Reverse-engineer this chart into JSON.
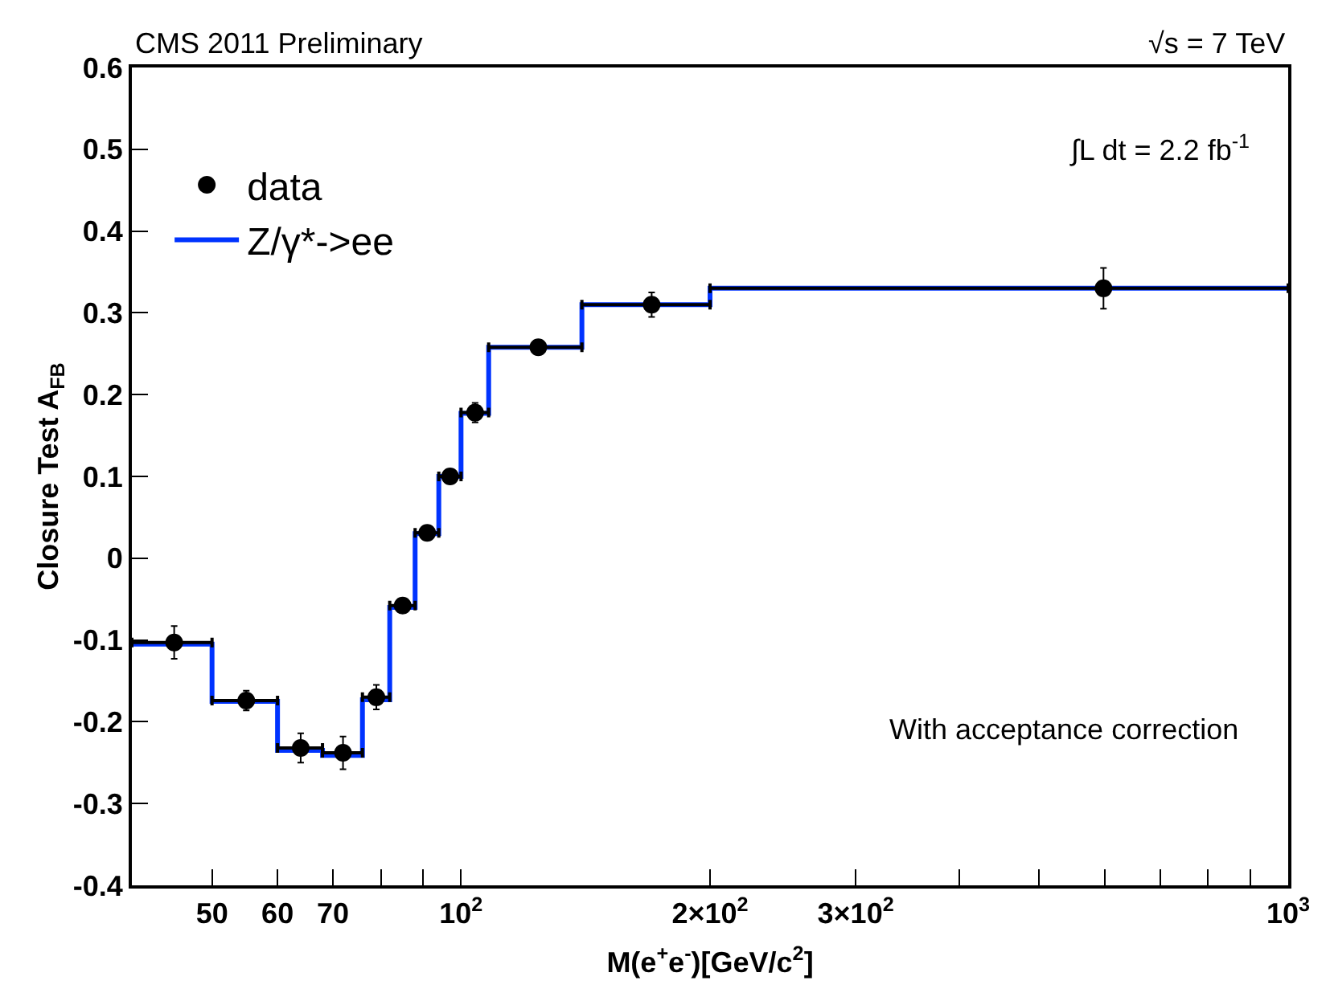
{
  "chart_data": {
    "type": "step",
    "ylabel": "Closure Test A$_{FB}$",
    "xlabel": "M(e$^{+}$e$^{-}$)[GeV/c$^{2}$]",
    "log": "x",
    "legend": "top left",
    "xlim": [
      40,
      1000
    ],
    "ylim": [
      -0.4,
      0.6
    ],
    "xticks": [
      50,
      60,
      70,
      {
        "value": 80,
        "label": null
      },
      {
        "value": 90,
        "label": null
      },
      {
        "value": 100,
        "label": "10$^{2}$"
      },
      {
        "value": 200,
        "label": "2×10$^{2}$"
      },
      {
        "value": 300,
        "label": "3×10$^{2}$"
      },
      {
        "value": 400,
        "label": null
      },
      {
        "value": 500,
        "label": null
      },
      {
        "value": 600,
        "label": null
      },
      {
        "value": 700,
        "label": null
      },
      {
        "value": 800,
        "label": null
      },
      {
        "value": 900,
        "label": null
      },
      {
        "value": 1000,
        "label": "10$^{3}$"
      }
    ],
    "yticks": [
      -0.4,
      -0.3,
      -0.2,
      -0.1,
      0,
      0.1,
      0.2,
      0.3,
      0.4,
      0.5,
      0.6
    ],
    "series": [
      {
        "name": "data",
        "type": "scatter",
        "marker": "circle",
        "color": "#000000",
        "x": [
          45,
          55,
          64,
          72,
          79,
          85,
          91,
          97,
          104,
          124,
          170,
          598
        ],
        "values": [
          -0.103,
          -0.174,
          -0.232,
          -0.238,
          -0.17,
          -0.058,
          0.031,
          0.1,
          0.178,
          0.258,
          0.31,
          0.33
        ],
        "errors": [
          0.02,
          0.012,
          0.018,
          0.02,
          0.015,
          0.008,
          null,
          null,
          0.012,
          null,
          0.015,
          0.025
        ],
        "xerrors": [
          [
            40,
            50
          ],
          [
            50,
            60
          ],
          [
            60,
            68
          ],
          [
            68,
            76
          ],
          [
            76,
            82
          ],
          [
            82,
            88
          ],
          [
            88,
            94
          ],
          [
            94,
            100
          ],
          [
            100,
            108
          ],
          [
            108,
            140
          ],
          [
            140,
            200
          ],
          [
            200,
            1000
          ]
        ]
      },
      {
        "name": "Z/γ*->ee",
        "color": "#0033ff",
        "x": [
          40,
          50,
          60,
          68,
          76,
          82,
          88,
          94,
          100,
          108,
          140,
          200,
          1000
        ],
        "values": [
          -0.105,
          -0.175,
          -0.235,
          -0.241,
          -0.173,
          -0.06,
          0.03,
          0.1,
          0.177,
          0.258,
          0.31,
          0.33,
          0.33
        ]
      }
    ],
    "annotations": [
      "CMS 2011 Preliminary",
      "√s = 7 TeV",
      "∫L dt = 2.2 fb$^{-1}$",
      "With acceptance correction"
    ]
  }
}
